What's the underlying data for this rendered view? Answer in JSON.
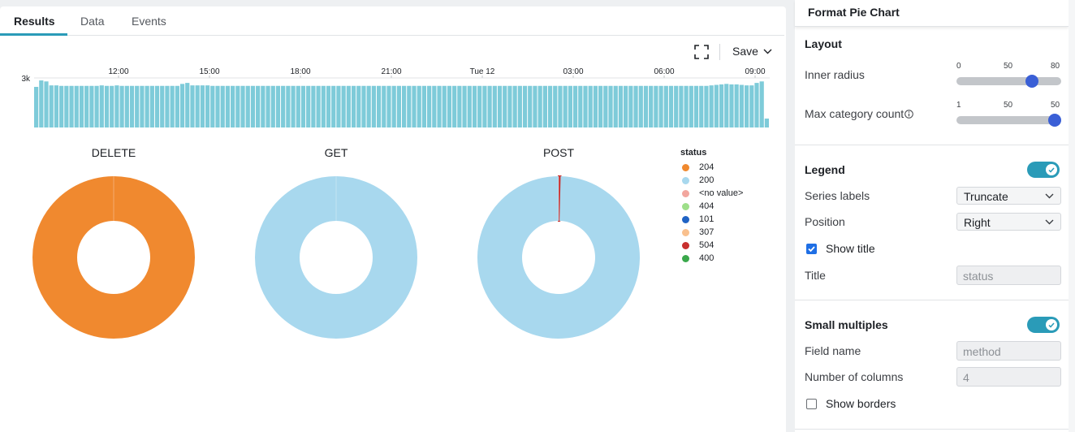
{
  "tabs": [
    {
      "label": "Results",
      "active": true
    },
    {
      "label": "Data",
      "active": false
    },
    {
      "label": "Events",
      "active": false
    }
  ],
  "toolbar": {
    "save_label": "Save",
    "expand_icon": "expand-icon",
    "chevron_icon": "chevron-down-icon"
  },
  "histogram": {
    "y_label": "3k",
    "time_labels": [
      "12:00",
      "15:00",
      "18:00",
      "21:00",
      "Tue 12",
      "03:00",
      "06:00",
      "09:00"
    ],
    "bar_color": "#7ecbd9",
    "bars": [
      0.82,
      0.95,
      0.93,
      0.85,
      0.85,
      0.84,
      0.84,
      0.84,
      0.84,
      0.84,
      0.84,
      0.84,
      0.84,
      0.85,
      0.84,
      0.84,
      0.85,
      0.84,
      0.84,
      0.84,
      0.84,
      0.84,
      0.84,
      0.84,
      0.84,
      0.84,
      0.84,
      0.84,
      0.84,
      0.88,
      0.9,
      0.85,
      0.85,
      0.85,
      0.85,
      0.84,
      0.84,
      0.84,
      0.84,
      0.84,
      0.84,
      0.84,
      0.84,
      0.84,
      0.84,
      0.84,
      0.84,
      0.84,
      0.84,
      0.84,
      0.84,
      0.84,
      0.84,
      0.84,
      0.84,
      0.84,
      0.84,
      0.84,
      0.84,
      0.84,
      0.84,
      0.84,
      0.84,
      0.84,
      0.84,
      0.84,
      0.84,
      0.84,
      0.84,
      0.84,
      0.84,
      0.84,
      0.84,
      0.84,
      0.84,
      0.84,
      0.84,
      0.84,
      0.84,
      0.84,
      0.84,
      0.84,
      0.84,
      0.84,
      0.84,
      0.84,
      0.84,
      0.84,
      0.84,
      0.84,
      0.84,
      0.84,
      0.84,
      0.84,
      0.84,
      0.84,
      0.84,
      0.84,
      0.84,
      0.84,
      0.84,
      0.84,
      0.84,
      0.84,
      0.84,
      0.84,
      0.84,
      0.84,
      0.84,
      0.84,
      0.84,
      0.84,
      0.84,
      0.84,
      0.84,
      0.84,
      0.84,
      0.84,
      0.84,
      0.84,
      0.84,
      0.84,
      0.84,
      0.84,
      0.84,
      0.84,
      0.84,
      0.84,
      0.84,
      0.84,
      0.84,
      0.84,
      0.84,
      0.84,
      0.85,
      0.86,
      0.87,
      0.88,
      0.87,
      0.87,
      0.86,
      0.85,
      0.85,
      0.9,
      0.93,
      0.18
    ]
  },
  "chart_data": {
    "type": "pie",
    "inner_radius_fraction": 0.45,
    "legend_title": "status",
    "legend": [
      {
        "label": "204",
        "color": "#f0892f"
      },
      {
        "label": "200",
        "color": "#a8d8ee"
      },
      {
        "label": "<no value>",
        "color": "#f2a69e"
      },
      {
        "label": "404",
        "color": "#9edf8a"
      },
      {
        "label": "101",
        "color": "#2063c4"
      },
      {
        "label": "307",
        "color": "#f9c08e"
      },
      {
        "label": "504",
        "color": "#c8302e"
      },
      {
        "label": "400",
        "color": "#3aa84b"
      }
    ],
    "pies": [
      {
        "title": "DELETE",
        "slices": [
          {
            "label": "204",
            "value": 100
          }
        ]
      },
      {
        "title": "GET",
        "slices": [
          {
            "label": "200",
            "value": 100
          }
        ]
      },
      {
        "title": "POST",
        "slices": [
          {
            "label": "504",
            "value": 0.4
          },
          {
            "label": "200",
            "value": 99.6
          }
        ]
      }
    ]
  },
  "format_panel": {
    "title": "Format Pie Chart",
    "layout": {
      "title": "Layout",
      "inner_radius": {
        "label": "Inner radius",
        "min": "0",
        "mid": "50",
        "max": "80",
        "value": 60,
        "min_val": 0,
        "max_val": 80
      },
      "max_category_count": {
        "label": "Max category count",
        "info_icon": "info-icon",
        "min": "1",
        "mid": "50",
        "max": "50",
        "value": 50,
        "min_val": 1,
        "max_val": 50
      }
    },
    "legend": {
      "title": "Legend",
      "enabled": true,
      "series_labels": {
        "label": "Series labels",
        "value": "Truncate"
      },
      "position": {
        "label": "Position",
        "value": "Right"
      },
      "show_title": {
        "label": "Show title",
        "checked": true
      },
      "title_field": {
        "label": "Title",
        "placeholder": "status"
      }
    },
    "small_multiples": {
      "title": "Small multiples",
      "enabled": true,
      "field_name": {
        "label": "Field name",
        "placeholder": "method"
      },
      "number_of_columns": {
        "label": "Number of columns",
        "placeholder": "4"
      },
      "show_borders": {
        "label": "Show borders",
        "checked": false
      }
    }
  }
}
